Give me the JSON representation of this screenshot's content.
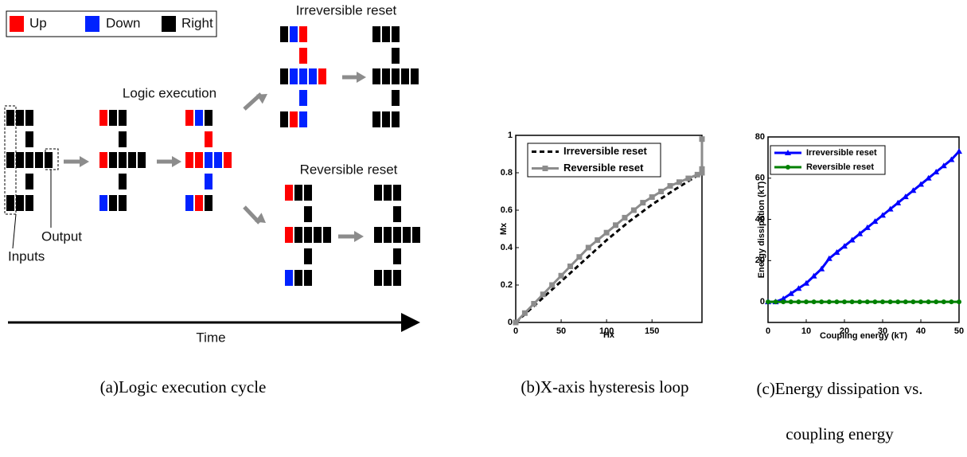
{
  "diagram": {
    "legend": [
      "Up",
      "Down",
      "Right"
    ],
    "step_label": "Logic execution",
    "irreversible_label": "Irreversible reset",
    "reversible_label": "Reversible reset",
    "output_label": "Output",
    "inputs_label": "Inputs",
    "time_label": "Time"
  },
  "captions": [
    "(a)Logic execution cycle",
    "(b)X-axis hysteresis loop",
    "(c)Energy dissipation vs. coupling energy"
  ],
  "chart_data": [
    {
      "type": "line",
      "xlabel": "Hx",
      "ylabel": "Mx",
      "xlim": [
        0,
        205
      ],
      "ylim": [
        0,
        1
      ],
      "xticks": [
        0,
        50,
        100,
        150
      ],
      "yticks": [
        0,
        0.2,
        0.4,
        0.6,
        0.8,
        1
      ],
      "legend": "upper left",
      "series": [
        {
          "name": "Irreversible reset",
          "color": "#000000",
          "linestyle": "dashed",
          "x": [
            0,
            25,
            50,
            75,
            100,
            125,
            150,
            175,
            205,
            205
          ],
          "values": [
            0,
            0.11,
            0.22,
            0.33,
            0.44,
            0.54,
            0.63,
            0.71,
            0.8,
            1
          ]
        },
        {
          "name": "Reversible reset",
          "color": "#8c8c8c",
          "linestyle": "solid",
          "marker": "square",
          "x": [
            0,
            10,
            20,
            30,
            40,
            50,
            60,
            70,
            80,
            90,
            100,
            110,
            120,
            130,
            140,
            150,
            160,
            170,
            180,
            190,
            200,
            205,
            205,
            205
          ],
          "values": [
            0,
            0.05,
            0.1,
            0.15,
            0.2,
            0.25,
            0.3,
            0.35,
            0.4,
            0.44,
            0.48,
            0.52,
            0.56,
            0.6,
            0.64,
            0.67,
            0.7,
            0.73,
            0.75,
            0.77,
            0.79,
            0.8,
            0.82,
            0.98
          ]
        }
      ]
    },
    {
      "type": "line",
      "xlabel": "Coupling energy (kT)",
      "ylabel": "Energy dissipation (kT)",
      "xlim": [
        0,
        50
      ],
      "ylim": [
        -10,
        80
      ],
      "xticks": [
        0,
        10,
        20,
        30,
        40,
        50
      ],
      "yticks": [
        0,
        20,
        40,
        60,
        80
      ],
      "legend": "upper left",
      "series": [
        {
          "name": "Irreversible reset",
          "color": "#0000ff",
          "linestyle": "solid",
          "marker": "triangle",
          "x": [
            0,
            2,
            4,
            6,
            8,
            10,
            12,
            14,
            16,
            18,
            20,
            22,
            24,
            26,
            28,
            30,
            32,
            34,
            36,
            38,
            40,
            42,
            44,
            46,
            48,
            50
          ],
          "values": [
            0,
            0,
            1.5,
            4,
            6.5,
            9,
            12.5,
            16,
            21,
            24,
            27,
            30,
            33,
            36,
            39,
            42,
            45,
            48,
            51,
            54,
            57,
            60,
            63,
            66,
            69,
            73
          ]
        },
        {
          "name": "Reversible reset",
          "color": "#008000",
          "linestyle": "solid",
          "marker": "circle",
          "x": [
            0,
            2,
            4,
            6,
            8,
            10,
            12,
            14,
            16,
            18,
            20,
            22,
            24,
            26,
            28,
            30,
            32,
            34,
            36,
            38,
            40,
            42,
            44,
            46,
            48,
            50
          ],
          "values": [
            0,
            0,
            0,
            0,
            0,
            0,
            0,
            0,
            0,
            0,
            0,
            0,
            0,
            0,
            0,
            0,
            0,
            0,
            0,
            0,
            0,
            0,
            0,
            0,
            0,
            0
          ]
        }
      ]
    }
  ]
}
